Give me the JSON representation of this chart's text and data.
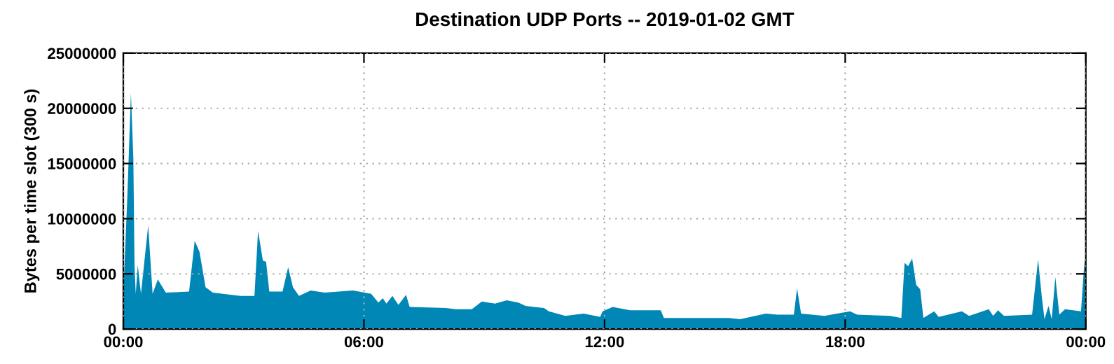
{
  "chart_data": {
    "type": "area",
    "title": "Destination UDP Ports -- 2019-01-02 GMT",
    "ylabel": "Bytes per time slot (300 s)",
    "xlim": [
      0,
      24
    ],
    "xticks": [
      {
        "value": 0,
        "label": "00:00"
      },
      {
        "value": 6,
        "label": "06:00"
      },
      {
        "value": 12,
        "label": "12:00"
      },
      {
        "value": 18,
        "label": "18:00"
      },
      {
        "value": 24,
        "label": "00:00"
      }
    ],
    "ylim": [
      0,
      25000000
    ],
    "yticks": [
      0,
      5000000,
      10000000,
      15000000,
      20000000,
      25000000
    ],
    "grid": true,
    "legend": false,
    "series": [
      {
        "color": "#0087b5",
        "x": [
          0,
          0.1,
          0.19,
          0.25,
          0.28,
          0.31,
          0.36,
          0.44,
          0.62,
          0.73,
          0.86,
          1.06,
          1.64,
          1.78,
          1.9,
          2.05,
          2.23,
          2.92,
          3.27,
          3.36,
          3.48,
          3.56,
          3.64,
          3.97,
          4.11,
          4.23,
          4.38,
          4.67,
          5.02,
          5.72,
          6.18,
          6.36,
          6.47,
          6.56,
          6.71,
          6.86,
          7.05,
          7.14,
          8.05,
          8.28,
          8.69,
          8.94,
          9.27,
          9.56,
          9.85,
          10.03,
          10.49,
          10.61,
          11.02,
          11.48,
          11.89,
          11.95,
          12.2,
          12.64,
          13.4,
          13.48,
          14.16,
          15.09,
          15.38,
          16.02,
          16.31,
          16.72,
          16.8,
          16.9,
          17.48,
          18.12,
          18.3,
          19.11,
          19.4,
          19.48,
          19.57,
          19.67,
          19.77,
          19.87,
          19.95,
          20.22,
          20.33,
          20.91,
          21.09,
          21.58,
          21.69,
          21.81,
          21.96,
          22.66,
          22.81,
          22.9,
          22.97,
          23.07,
          23.15,
          23.24,
          23.34,
          23.48,
          23.88,
          23.97,
          24
        ],
        "values": [
          3200000,
          12000000,
          21400000,
          15500000,
          5700000,
          3200000,
          5800000,
          3200000,
          9400000,
          3200000,
          4500000,
          3300000,
          3400000,
          8000000,
          7000000,
          3800000,
          3300000,
          3000000,
          3000000,
          8900000,
          6200000,
          6100000,
          3400000,
          3400000,
          5600000,
          3800000,
          3000000,
          3500000,
          3300000,
          3500000,
          3200000,
          2400000,
          2800000,
          2300000,
          3000000,
          2200000,
          3100000,
          2000000,
          1900000,
          1800000,
          1800000,
          2500000,
          2300000,
          2600000,
          2400000,
          2100000,
          1900000,
          1600000,
          1200000,
          1400000,
          1100000,
          1600000,
          2000000,
          1700000,
          1700000,
          1000000,
          1000000,
          1000000,
          900000,
          1400000,
          1300000,
          1300000,
          3700000,
          1400000,
          1200000,
          1600000,
          1300000,
          1200000,
          1000000,
          6000000,
          5700000,
          6400000,
          4000000,
          3600000,
          1000000,
          1600000,
          1100000,
          1600000,
          1200000,
          1800000,
          1200000,
          1700000,
          1200000,
          1300000,
          6300000,
          3000000,
          900000,
          2100000,
          900000,
          4700000,
          1300000,
          1800000,
          1600000,
          6400000,
          4000000
        ]
      }
    ]
  }
}
